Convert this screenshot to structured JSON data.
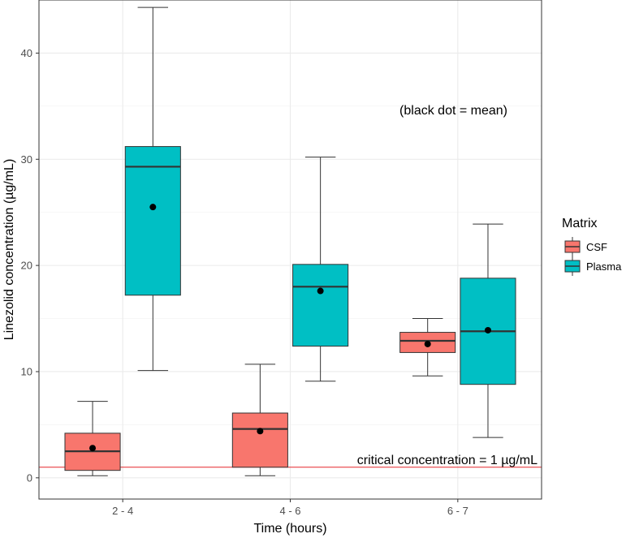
{
  "chart_data": {
    "type": "boxplot",
    "xlabel": "Time (hours)",
    "ylabel": "Linezolid concentration (µg/mL)",
    "ylim": [
      -2,
      45
    ],
    "yticks": [
      0,
      10,
      20,
      30,
      40
    ],
    "grid": true,
    "categories": [
      "2 - 4",
      "4 - 6",
      "6 - 7"
    ],
    "legend": {
      "title": "Matrix",
      "position": "right",
      "entries": [
        {
          "name": "CSF",
          "color": "#F8766D"
        },
        {
          "name": "Plasma",
          "color": "#00BFC4"
        }
      ]
    },
    "series": [
      {
        "name": "CSF",
        "color": "#F8766D",
        "boxes": [
          {
            "category": "2 - 4",
            "min": 0.2,
            "q1": 0.7,
            "median": 2.5,
            "q3": 4.2,
            "max": 7.2,
            "mean": 2.8
          },
          {
            "category": "4 - 6",
            "min": 0.2,
            "q1": 1.0,
            "median": 4.6,
            "q3": 6.1,
            "max": 10.7,
            "mean": 4.4
          },
          {
            "category": "6 - 7",
            "min": 9.6,
            "q1": 11.8,
            "median": 12.9,
            "q3": 13.7,
            "max": 15.0,
            "mean": 12.6
          }
        ]
      },
      {
        "name": "Plasma",
        "color": "#00BFC4",
        "boxes": [
          {
            "category": "2 - 4",
            "min": 10.1,
            "q1": 17.2,
            "median": 29.3,
            "q3": 31.2,
            "max": 44.3,
            "mean": 25.5
          },
          {
            "category": "4 - 6",
            "min": 9.1,
            "q1": 12.4,
            "median": 18.0,
            "q3": 20.1,
            "max": 30.2,
            "mean": 17.6
          },
          {
            "category": "6 - 7",
            "min": 3.8,
            "q1": 8.8,
            "median": 13.8,
            "q3": 18.8,
            "max": 23.9,
            "mean": 13.9
          }
        ]
      }
    ],
    "reference_line": {
      "y": 1,
      "color": "#e5262a",
      "label": "critical concentration = 1 µg/mL"
    },
    "annotations": [
      {
        "text": "(black dot = mean)"
      }
    ]
  }
}
